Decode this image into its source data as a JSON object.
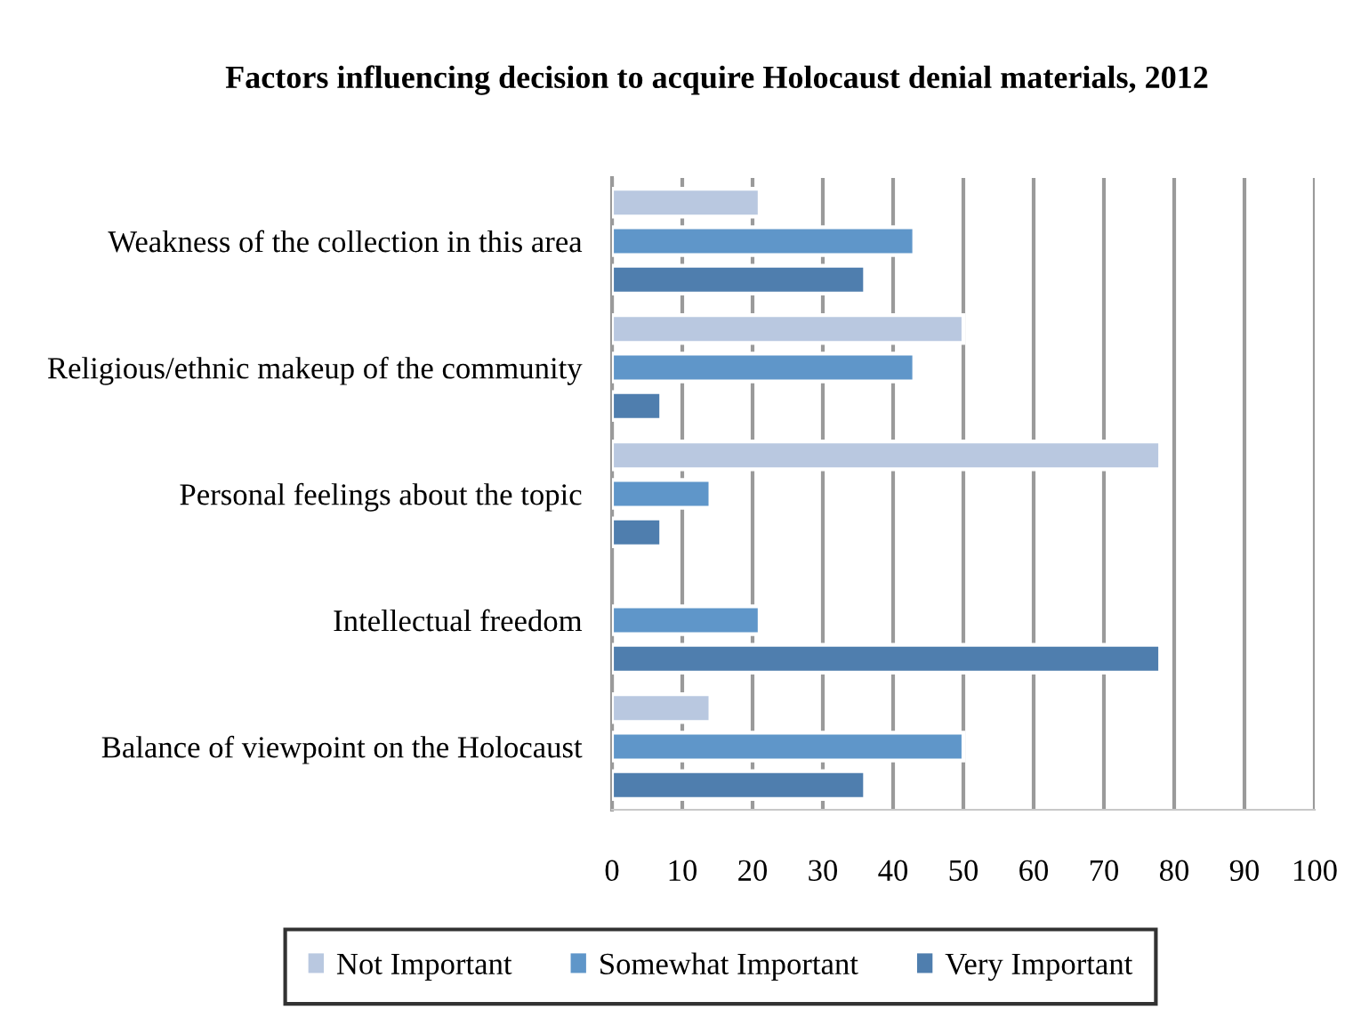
{
  "chart_data": {
    "type": "bar",
    "orientation": "horizontal",
    "title": "Factors influencing decision to acquire Holocaust denial materials, 2012",
    "categories": [
      "Weakness of the collection in this area",
      "Religious/ethnic makeup of the community",
      "Personal feelings about the topic",
      "Intellectual freedom",
      "Balance of viewpoint on the Holocaust"
    ],
    "series": [
      {
        "name": "Not Important",
        "color": "#b9c8e0",
        "values": [
          21,
          50,
          78,
          0,
          14
        ]
      },
      {
        "name": "Somewhat Important",
        "color": "#5f96c9",
        "values": [
          43,
          43,
          14,
          21,
          50
        ]
      },
      {
        "name": "Very Important",
        "color": "#4f7eae",
        "values": [
          36,
          7,
          7,
          78,
          36
        ]
      }
    ],
    "xlim": [
      0,
      100
    ],
    "xticks": [
      0,
      10,
      20,
      30,
      40,
      50,
      60,
      70,
      80,
      90,
      100
    ],
    "grid": "x",
    "legend": "bottom"
  }
}
